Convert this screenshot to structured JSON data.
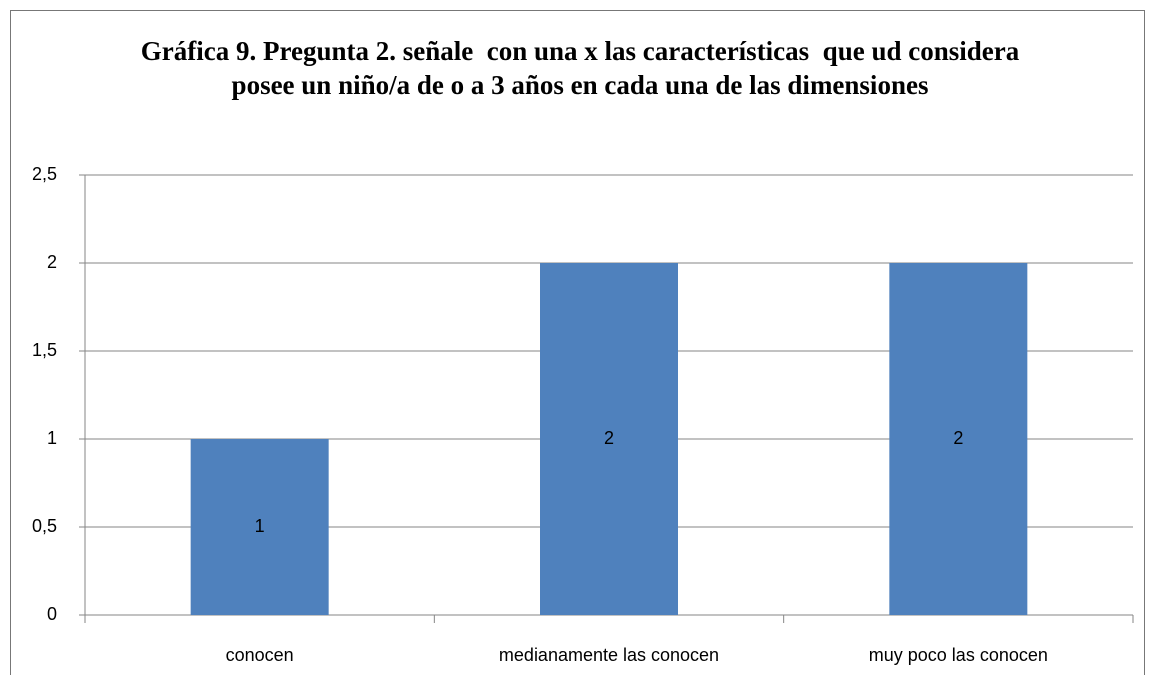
{
  "chart_data": {
    "type": "bar",
    "title": "Gráfica 9. Pregunta 2. señale  con una x las características  que ud considera posee un niño/a de o a 3 años en cada una de las dimensiones",
    "categories": [
      "conocen",
      "medianamente las conocen",
      "muy poco las conocen"
    ],
    "values": [
      1,
      2,
      2
    ],
    "color": "#4f81bd",
    "ylim": [
      0,
      2.5
    ],
    "yticks": [
      0,
      {
        "value": 0.5,
        "label": "0,5"
      },
      1,
      {
        "value": 1.5,
        "label": "1,5"
      },
      2,
      {
        "value": 2.5,
        "label": "2,5"
      }
    ],
    "grid": true
  }
}
